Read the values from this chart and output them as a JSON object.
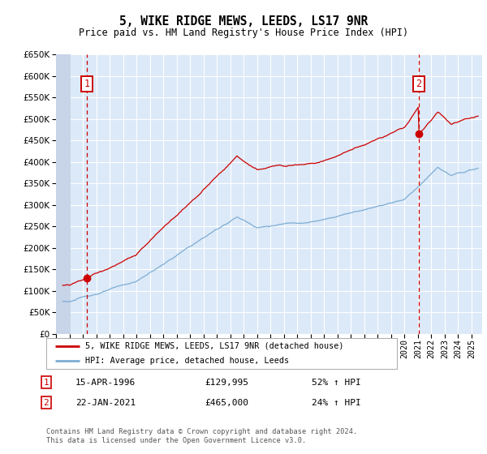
{
  "title": "5, WIKE RIDGE MEWS, LEEDS, LS17 9NR",
  "subtitle": "Price paid vs. HM Land Registry's House Price Index (HPI)",
  "ylim": [
    0,
    650000
  ],
  "yticks": [
    0,
    50000,
    100000,
    150000,
    200000,
    250000,
    300000,
    350000,
    400000,
    450000,
    500000,
    550000,
    600000,
    650000
  ],
  "xlim_start": 1994.0,
  "xlim_end": 2025.8,
  "background_color": "#dce9f8",
  "grid_color": "#ffffff",
  "transaction1_x": 1996.29,
  "transaction1_y": 129995,
  "transaction2_x": 2021.06,
  "transaction2_y": 465000,
  "legend_label1": "5, WIKE RIDGE MEWS, LEEDS, LS17 9NR (detached house)",
  "legend_label2": "HPI: Average price, detached house, Leeds",
  "annotation1_date": "15-APR-1996",
  "annotation1_price": "£129,995",
  "annotation1_hpi": "52% ↑ HPI",
  "annotation2_date": "22-JAN-2021",
  "annotation2_price": "£465,000",
  "annotation2_hpi": "24% ↑ HPI",
  "footnote": "Contains HM Land Registry data © Crown copyright and database right 2024.\nThis data is licensed under the Open Government Licence v3.0.",
  "line1_color": "#cc0000",
  "line2_color": "#7dadd4",
  "marker_color": "#cc0000",
  "vline_color": "#cc0000",
  "hatch_area_color": "#c8d4e8"
}
